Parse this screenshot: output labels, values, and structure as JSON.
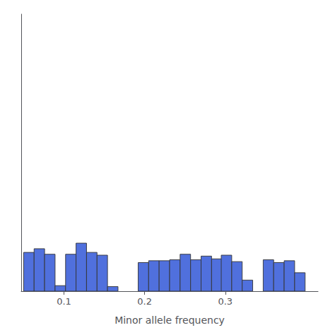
{
  "chart_data": {
    "type": "histogram",
    "xlabel": "Minor allele frequency",
    "x": [
      0.05,
      0.063,
      0.076,
      0.089,
      0.102,
      0.115,
      0.128,
      0.141,
      0.154,
      0.192,
      0.205,
      0.218,
      0.231,
      0.244,
      0.257,
      0.27,
      0.283,
      0.295,
      0.308,
      0.321,
      0.347,
      0.36,
      0.373,
      0.386,
      0.399
    ],
    "values": [
      210,
      230,
      200,
      30,
      200,
      260,
      210,
      195,
      25,
      155,
      165,
      165,
      170,
      200,
      170,
      190,
      175,
      195,
      160,
      60,
      170,
      155,
      165,
      100,
      0
    ],
    "bin_width": 0.013,
    "xlim": [
      0.047,
      0.415
    ],
    "xticks": [
      0.1,
      0.2,
      0.3
    ],
    "ylim": [
      0,
      1500
    ],
    "tick_labels": "x",
    "grid": false
  }
}
